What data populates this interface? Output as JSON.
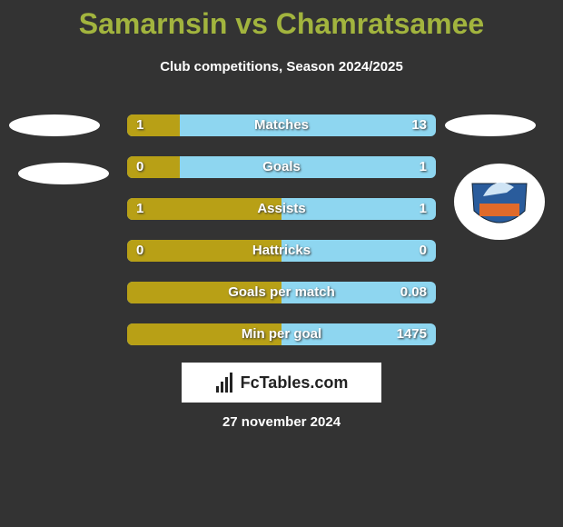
{
  "header": {
    "title": "Samarnsin vs Chamratsamee",
    "subtitle": "Club competitions, Season 2024/2025"
  },
  "rows": [
    {
      "label": "Matches",
      "left": "1",
      "right": "13"
    },
    {
      "label": "Goals",
      "left": "0",
      "right": "1"
    },
    {
      "label": "Assists",
      "left": "1",
      "right": "1"
    },
    {
      "label": "Hattricks",
      "left": "0",
      "right": "0"
    },
    {
      "label": "Goals per match",
      "right": "0.08"
    },
    {
      "label": "Min per goal",
      "right": "1475"
    }
  ],
  "brand": "FcTables.com",
  "date": "27 november 2024"
}
